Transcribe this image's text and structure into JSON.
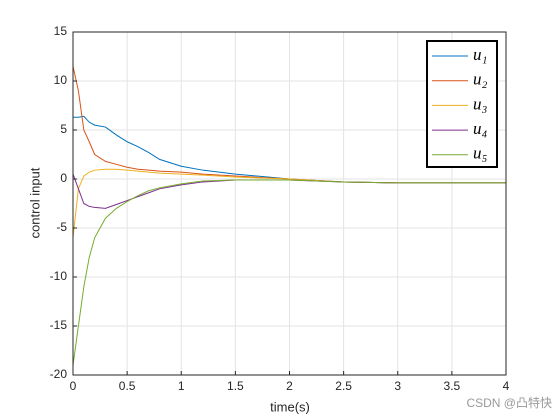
{
  "chart_data": {
    "type": "line",
    "xlabel": "time(s)",
    "ylabel": "control input",
    "x": [
      0,
      0.05,
      0.1,
      0.15,
      0.2,
      0.3,
      0.4,
      0.5,
      0.6,
      0.7,
      0.8,
      1.0,
      1.2,
      1.5,
      2.0,
      2.5,
      3.0,
      3.5,
      4.0
    ],
    "series": [
      {
        "name": "u₁",
        "color": "#0072BD",
        "values": [
          6.3,
          6.3,
          6.4,
          5.8,
          5.5,
          5.3,
          4.5,
          3.8,
          3.3,
          2.7,
          2.0,
          1.3,
          0.9,
          0.5,
          0.0,
          -0.3,
          -0.4,
          -0.4,
          -0.4
        ]
      },
      {
        "name": "u₂",
        "color": "#D95319",
        "values": [
          11.5,
          9,
          5,
          3.8,
          2.5,
          1.8,
          1.5,
          1.2,
          1.0,
          0.9,
          0.8,
          0.7,
          0.5,
          0.3,
          0.0,
          -0.3,
          -0.4,
          -0.4,
          -0.4
        ]
      },
      {
        "name": "u₃",
        "color": "#EDB120",
        "values": [
          -6,
          -1,
          0.3,
          0.7,
          0.9,
          1.0,
          1.0,
          0.9,
          0.8,
          0.7,
          0.6,
          0.5,
          0.4,
          0.2,
          0.0,
          -0.3,
          -0.4,
          -0.4,
          -0.4
        ]
      },
      {
        "name": "u₄",
        "color": "#7E2F8E",
        "values": [
          0.5,
          -1,
          -2.5,
          -2.8,
          -2.9,
          -3,
          -2.6,
          -2.2,
          -1.8,
          -1.4,
          -1.0,
          -0.6,
          -0.3,
          -0.1,
          -0.1,
          -0.3,
          -0.4,
          -0.4,
          -0.4
        ]
      },
      {
        "name": "u₅",
        "color": "#77AC30",
        "values": [
          -19,
          -15,
          -11,
          -8,
          -6,
          -4,
          -3,
          -2.3,
          -1.7,
          -1.2,
          -0.9,
          -0.5,
          -0.2,
          -0.1,
          -0.1,
          -0.3,
          -0.4,
          -0.4,
          -0.4
        ]
      }
    ],
    "xlim": [
      0,
      4
    ],
    "xticks": [
      0,
      0.5,
      1,
      1.5,
      2,
      2.5,
      3,
      3.5,
      4
    ],
    "ylim": [
      -20,
      15
    ],
    "yticks": [
      -20,
      -15,
      -10,
      -5,
      0,
      5,
      10,
      15
    ],
    "grid": true,
    "legend": "northeast"
  },
  "watermark": "CSDN @凸特快"
}
